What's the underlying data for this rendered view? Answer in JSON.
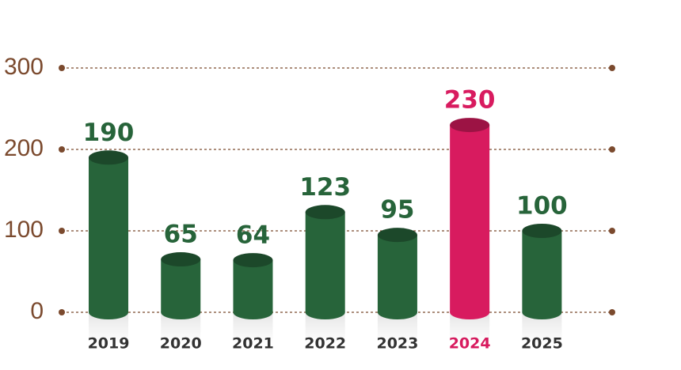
{
  "chart_data": {
    "type": "bar",
    "categories": [
      "2019",
      "2020",
      "2021",
      "2022",
      "2023",
      "2024",
      "2025"
    ],
    "values": [
      190,
      65,
      64,
      123,
      95,
      230,
      100
    ],
    "colors": [
      "#27643a",
      "#27643a",
      "#27643a",
      "#27643a",
      "#27643a",
      "#d81b5f",
      "#27643a"
    ],
    "ylim": [
      0,
      300
    ],
    "yticks": [
      0,
      100,
      200,
      300
    ],
    "grid": true
  }
}
